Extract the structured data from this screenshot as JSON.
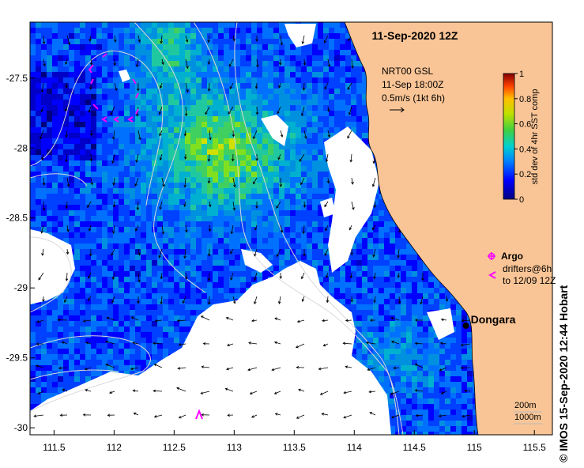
{
  "title": "11-Sep-2020 12Z",
  "credit": "©  IMOS 15-Sep-2020 12:44 Hobart",
  "velocity_source": "NRT00 GSL",
  "velocity_time": "11-Sep 18:00Z",
  "velocity_scale": "0.5m/s (1kt 6h)",
  "colorbar": {
    "label": "std dev of 4hr SST comp",
    "ticks": [
      "0",
      "0.2",
      "0.4",
      "0.6",
      "0.8",
      "1"
    ],
    "range": [
      0,
      1
    ]
  },
  "legend": {
    "argo_label": "Argo",
    "drifters_line1": "drifters@6h",
    "drifters_line2": "to 12/09 12Z"
  },
  "place": {
    "name": "Dongara",
    "lon": 114.93,
    "lat": -29.27
  },
  "contour_labels": {
    "label1": "200m",
    "label2": "1000m"
  },
  "axes": {
    "lon_ticks": [
      "111.5",
      "112",
      "112.5",
      "113",
      "113.5",
      "114",
      "114.5",
      "115",
      "115.5"
    ],
    "lat_ticks": [
      "-27.5",
      "-28",
      "-28.5",
      "-29",
      "-29.5",
      "-30"
    ],
    "lon_range": [
      111.3,
      115.65
    ],
    "lat_range": [
      -30.05,
      -27.1
    ]
  },
  "colors": {
    "land": "#fac596",
    "cloud": "#ffffff",
    "drifter": "#ff00ff",
    "contour": "#d8d8d8"
  }
}
